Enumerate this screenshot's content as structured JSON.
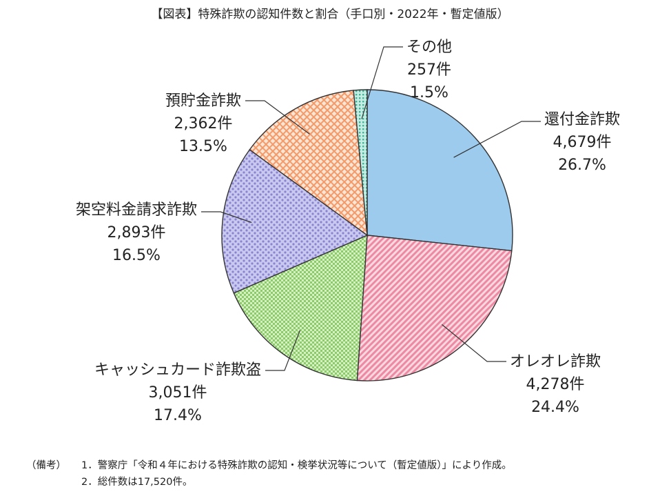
{
  "chart_data": {
    "type": "pie",
    "title": "【図表】特殊詐欺の認知件数と割合（手口別・2022年・暫定値版）",
    "total_count": 17520,
    "slices": [
      {
        "name": "還付金詐欺",
        "count_label": "4,679件",
        "percent_label": "26.7%",
        "value": 26.7,
        "color": "#9ccbee",
        "pattern": "solid"
      },
      {
        "name": "オレオレ詐欺",
        "count_label": "4,278件",
        "percent_label": "24.4%",
        "value": 24.4,
        "color": "#f2a6b8",
        "pattern": "diagonal"
      },
      {
        "name": "キャッシュカード詐欺盗",
        "count_label": "3,051件",
        "percent_label": "17.4%",
        "value": 17.4,
        "color": "#a9d888",
        "pattern": "checker"
      },
      {
        "name": "架空料金請求詐欺",
        "count_label": "2,893件",
        "percent_label": "16.5%",
        "value": 16.5,
        "color": "#b9b7e6",
        "pattern": "dots"
      },
      {
        "name": "預貯金詐欺",
        "count_label": "2,362件",
        "percent_label": "13.5%",
        "value": 13.5,
        "color": "#f6b58f",
        "pattern": "crosshatch"
      },
      {
        "name": "その他",
        "count_label": "257件",
        "percent_label": "1.5%",
        "value": 1.5,
        "color": "#7fd1bd",
        "pattern": "dots-dense"
      }
    ]
  },
  "notes": {
    "prefix": "（備考）",
    "line1": "1．警察庁「令和４年における特殊詐欺の認知・検挙状況等について（暫定値版）」により作成。",
    "line2": "2．総件数は17,520件。"
  }
}
